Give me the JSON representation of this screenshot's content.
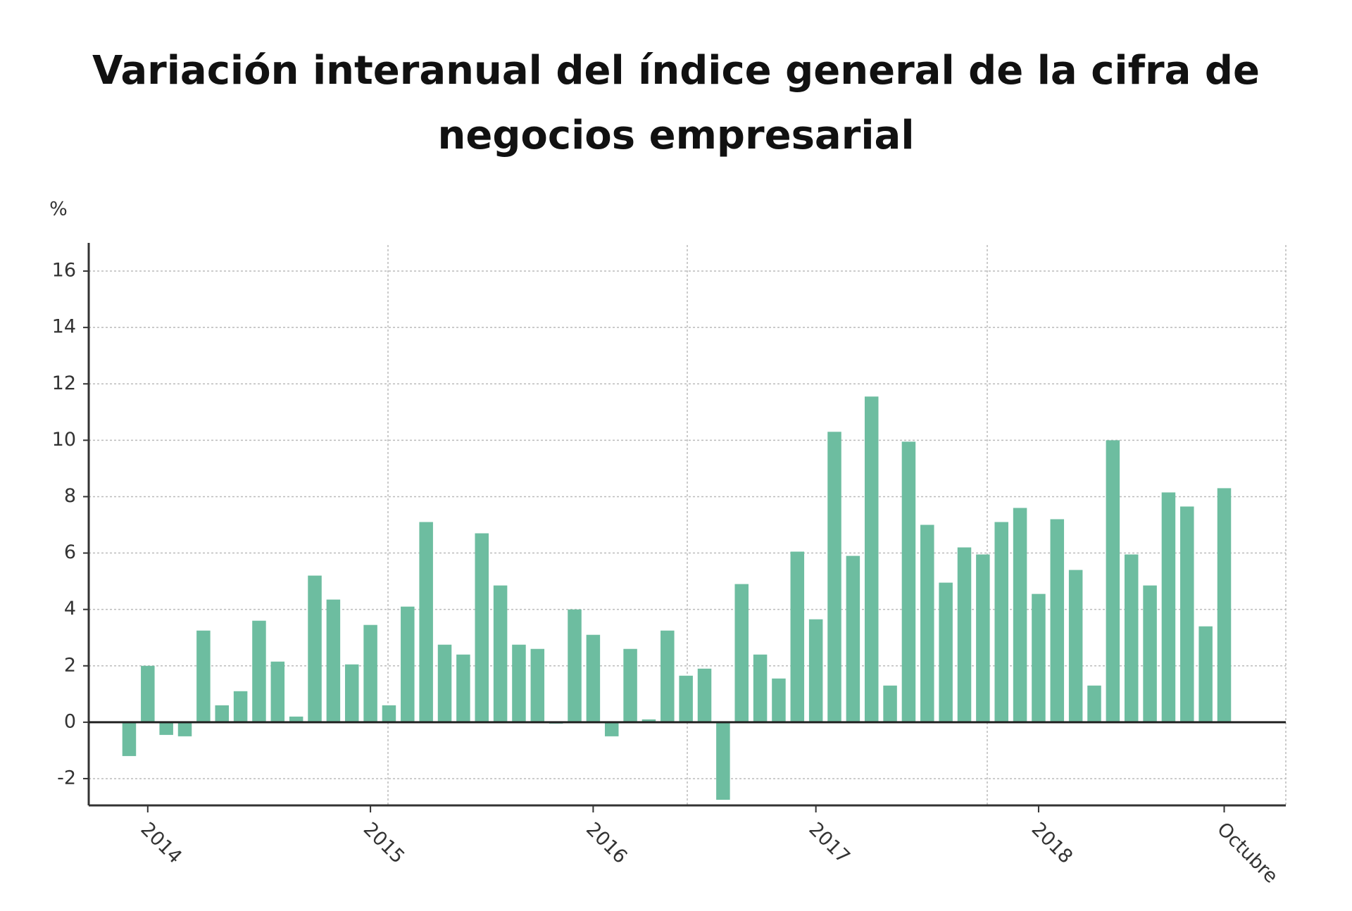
{
  "chart_data": {
    "type": "bar",
    "title": "Variación interanual del índice general de la cifra de negocios empresarial",
    "y_label": "%",
    "categories": [
      null,
      "2014",
      null,
      null,
      null,
      null,
      null,
      null,
      null,
      null,
      null,
      null,
      null,
      "2015",
      null,
      null,
      null,
      null,
      null,
      null,
      null,
      null,
      null,
      null,
      null,
      "2016",
      null,
      null,
      null,
      null,
      null,
      null,
      null,
      null,
      null,
      null,
      null,
      "2017",
      null,
      null,
      null,
      null,
      null,
      null,
      null,
      null,
      null,
      null,
      null,
      "2018",
      null,
      null,
      null,
      null,
      null,
      null,
      null,
      null,
      null,
      "Octubre"
    ],
    "values": [
      -1.2,
      2.0,
      -0.45,
      -0.5,
      3.25,
      0.6,
      1.1,
      3.6,
      2.15,
      0.2,
      5.2,
      4.35,
      2.05,
      3.45,
      0.6,
      4.1,
      7.1,
      2.75,
      2.4,
      6.7,
      4.85,
      2.75,
      2.6,
      -0.05,
      4.0,
      3.1,
      -0.5,
      2.6,
      0.1,
      3.25,
      1.65,
      1.9,
      -2.75,
      4.9,
      2.4,
      1.55,
      6.05,
      3.65,
      10.3,
      5.9,
      11.55,
      1.3,
      9.95,
      7.0,
      4.95,
      6.2,
      5.95,
      7.1,
      7.6,
      4.55,
      7.2,
      5.4,
      1.3,
      10.0,
      5.95,
      4.85,
      8.15,
      7.65,
      3.4,
      8.3
    ],
    "color": "#6dbda0",
    "ylim": [
      -2.95,
      17
    ],
    "yticks": [
      -2,
      0,
      2,
      4,
      6,
      8,
      10,
      12,
      14,
      16
    ],
    "grid": true
  }
}
